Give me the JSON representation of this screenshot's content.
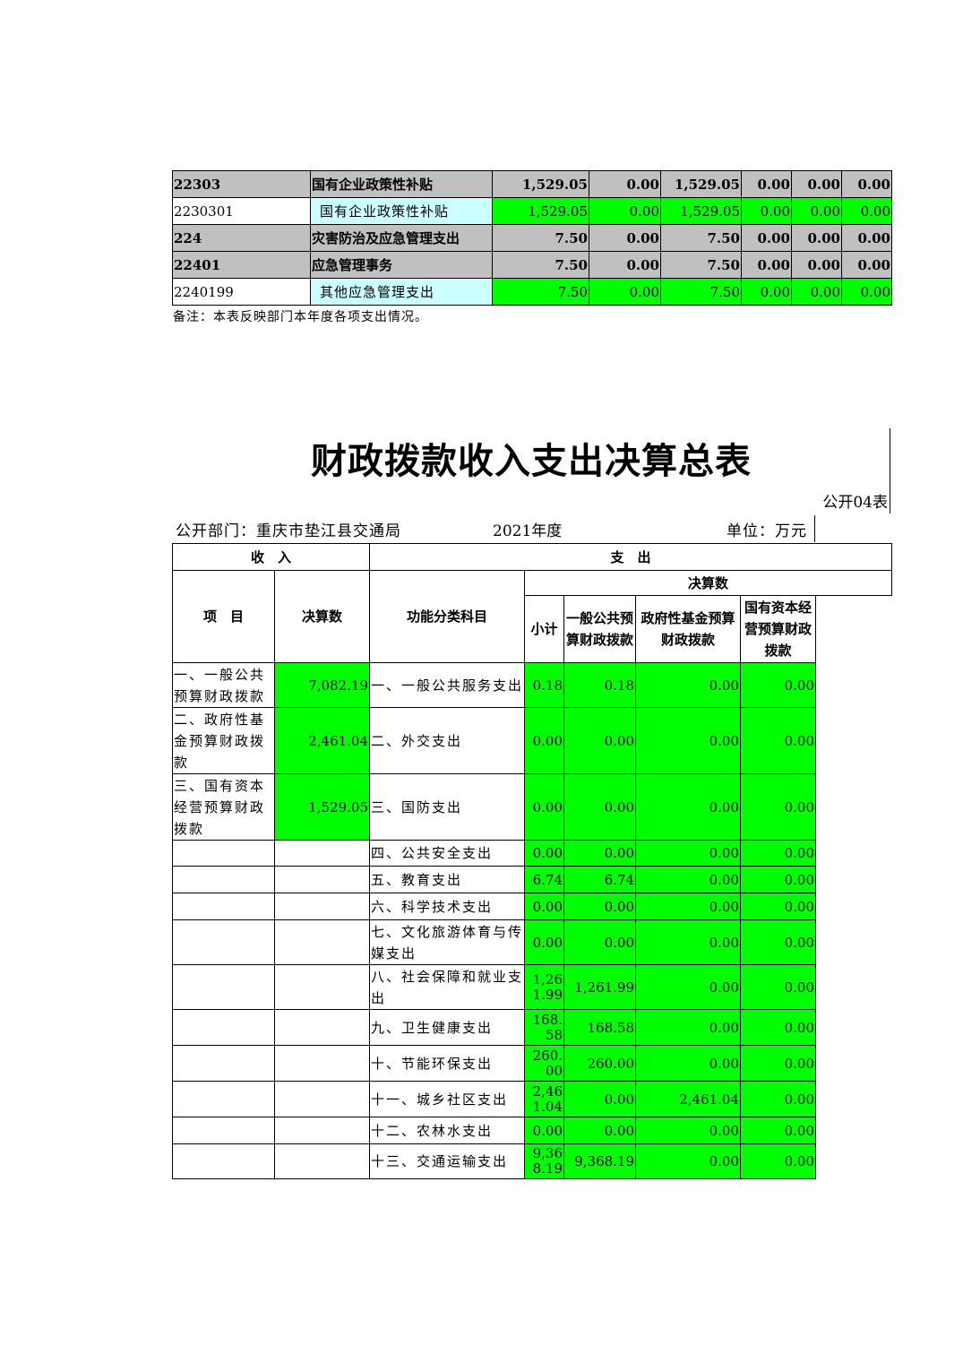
{
  "top_table": {
    "rows": [
      {
        "code": "22303",
        "name": "国有企业政策性补贴",
        "values": [
          "1,529.05",
          "0.00",
          "1,529.05",
          "0.00",
          "0.00",
          "0.00"
        ],
        "level": "summary"
      },
      {
        "code": "2230301",
        "name": "国有企业政策性补贴",
        "values": [
          "1,529.05",
          "0.00",
          "1,529.05",
          "0.00",
          "0.00",
          "0.00"
        ],
        "level": "leaf"
      },
      {
        "code": "224",
        "name": "灾害防治及应急管理支出",
        "values": [
          "7.50",
          "0.00",
          "7.50",
          "0.00",
          "0.00",
          "0.00"
        ],
        "level": "summary"
      },
      {
        "code": "22401",
        "name": "应急管理事务",
        "values": [
          "7.50",
          "0.00",
          "7.50",
          "0.00",
          "0.00",
          "0.00"
        ],
        "level": "summary"
      },
      {
        "code": "2240199",
        "name": "其他应急管理支出",
        "values": [
          "7.50",
          "0.00",
          "7.50",
          "0.00",
          "0.00",
          "0.00"
        ],
        "level": "leaf"
      }
    ],
    "note": "备注：本表反映部门本年度各项支出情况。"
  },
  "report": {
    "title": "财政拨款收入支出决算总表",
    "table_no": "公开04表",
    "dept": "公开部门：重庆市垫江县交通局",
    "year": "2021年度",
    "unit": "单位：万元"
  },
  "bottom_table": {
    "headers": {
      "income": "收　入",
      "expense": "支　出",
      "item": "项　目",
      "amount": "决算数",
      "func": "功能分类科目",
      "final": "决算数",
      "subtotal": "小计",
      "general": "一般公共预算财政拨款",
      "fund": "政府性基金预算财政拨款",
      "state": "国有资本经营预算财政拨款"
    },
    "rows": [
      {
        "item": "一、一般公共预算财政拨款",
        "amount": "7,082.19",
        "func": "一、一般公共服务支出",
        "values": [
          "0.18",
          "0.18",
          "0.00",
          "0.00"
        ]
      },
      {
        "item": "二、政府性基金预算财政拨款",
        "amount": "2,461.04",
        "func": "二、外交支出",
        "values": [
          "0.00",
          "0.00",
          "0.00",
          "0.00"
        ]
      },
      {
        "item": "三、国有资本经营预算财政拨款",
        "amount": "1,529.05",
        "func": "三、国防支出",
        "values": [
          "0.00",
          "0.00",
          "0.00",
          "0.00"
        ]
      },
      {
        "item": "",
        "amount": "",
        "func": "四、公共安全支出",
        "values": [
          "0.00",
          "0.00",
          "0.00",
          "0.00"
        ]
      },
      {
        "item": "",
        "amount": "",
        "func": "五、教育支出",
        "values": [
          "6.74",
          "6.74",
          "0.00",
          "0.00"
        ]
      },
      {
        "item": "",
        "amount": "",
        "func": "六、科学技术支出",
        "values": [
          "0.00",
          "0.00",
          "0.00",
          "0.00"
        ]
      },
      {
        "item": "",
        "amount": "",
        "func": "七、文化旅游体育与传媒支出",
        "values": [
          "0.00",
          "0.00",
          "0.00",
          "0.00"
        ]
      },
      {
        "item": "",
        "amount": "",
        "func": "八、社会保障和就业支出",
        "values": [
          "1,261.99",
          "1,261.99",
          "0.00",
          "0.00"
        ]
      },
      {
        "item": "",
        "amount": "",
        "func": "九、卫生健康支出",
        "values": [
          "168.58",
          "168.58",
          "0.00",
          "0.00"
        ]
      },
      {
        "item": "",
        "amount": "",
        "func": "十、节能环保支出",
        "values": [
          "260.00",
          "260.00",
          "0.00",
          "0.00"
        ]
      },
      {
        "item": "",
        "amount": "",
        "func": "十一、城乡社区支出",
        "values": [
          "2,461.04",
          "0.00",
          "2,461.04",
          "0.00"
        ]
      },
      {
        "item": "",
        "amount": "",
        "func": "十二、农林水支出",
        "values": [
          "0.00",
          "0.00",
          "0.00",
          "0.00"
        ]
      },
      {
        "item": "",
        "amount": "",
        "func": "十三、交通运输支出",
        "values": [
          "9,368.19",
          "9,368.19",
          "0.00",
          "0.00"
        ]
      }
    ]
  },
  "colors": {
    "green": "#00ff00",
    "gray": "#c0c0c0",
    "cyan": "#ccffff"
  }
}
